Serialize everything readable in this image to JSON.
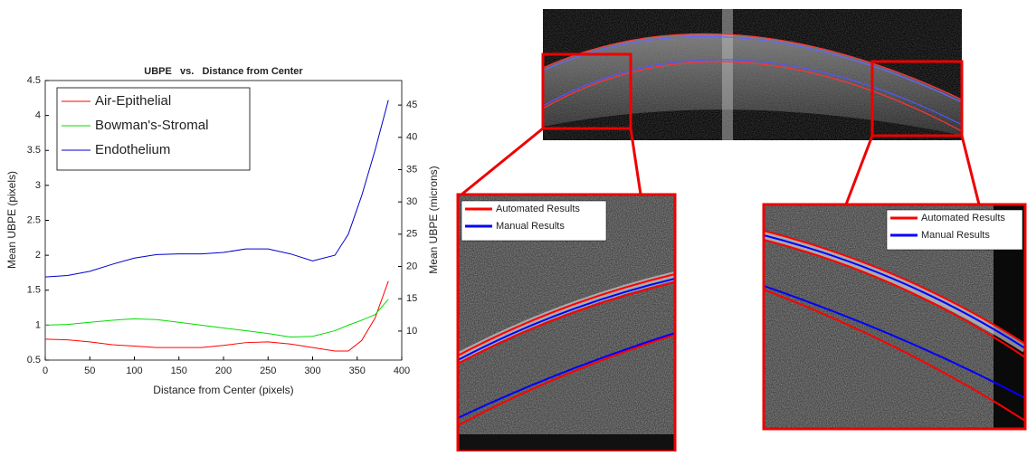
{
  "chart_data": {
    "type": "line",
    "title": "UBPE   vs.   Distance from Center",
    "xlabel": "Distance from Center (pixels)",
    "ylabel": "Mean UBPE (pixels)",
    "y2label": "Mean UBPE (microns)",
    "x": [
      0,
      25,
      50,
      75,
      100,
      125,
      150,
      175,
      200,
      225,
      250,
      275,
      300,
      325,
      340,
      355,
      370,
      385
    ],
    "series": [
      {
        "name": "Air-Epithelial",
        "color": "#ff0000",
        "values": [
          0.8,
          0.79,
          0.76,
          0.72,
          0.7,
          0.68,
          0.68,
          0.68,
          0.71,
          0.75,
          0.76,
          0.73,
          0.68,
          0.63,
          0.63,
          0.78,
          1.1,
          1.63
        ]
      },
      {
        "name": "Bowman's-Stromal",
        "color": "#00dd00",
        "values": [
          1.0,
          1.01,
          1.04,
          1.07,
          1.09,
          1.08,
          1.04,
          1.0,
          0.96,
          0.92,
          0.88,
          0.83,
          0.84,
          0.92,
          1.0,
          1.07,
          1.15,
          1.37
        ]
      },
      {
        "name": "Endothelium",
        "color": "#0000cc",
        "values": [
          1.69,
          1.71,
          1.77,
          1.87,
          1.96,
          2.01,
          2.02,
          2.02,
          2.04,
          2.09,
          2.09,
          2.02,
          1.92,
          2.0,
          2.3,
          2.85,
          3.5,
          4.22
        ]
      }
    ],
    "xlim": [
      0,
      400
    ],
    "xticks": [
      0,
      50,
      100,
      150,
      200,
      250,
      300,
      350,
      400
    ],
    "ylim": [
      0.5,
      4.5
    ],
    "yticks": [
      0.5,
      1,
      1.5,
      2,
      2.5,
      3,
      3.5,
      4,
      4.5
    ],
    "y2lim": [
      5.5,
      48.8
    ],
    "y2ticks": [
      10,
      15,
      20,
      25,
      30,
      35,
      40,
      45
    ],
    "legend": "upper left"
  },
  "insets": [
    {
      "legend": [
        {
          "name": "Automated Results",
          "color": "#ff0000"
        },
        {
          "name": "Manual Results",
          "color": "#0000ff"
        }
      ]
    },
    {
      "legend": [
        {
          "name": "Automated Results",
          "color": "#ff0000"
        },
        {
          "name": "Manual Results",
          "color": "#0000ff"
        }
      ]
    }
  ]
}
